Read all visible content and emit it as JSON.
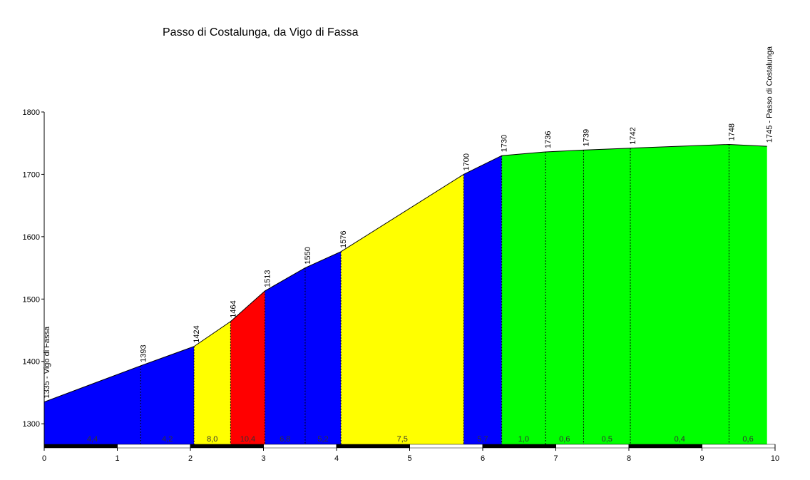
{
  "chart_data": {
    "type": "area",
    "title": "Passo di Costalunga, da Vigo di Fassa",
    "x": [
      0,
      1.32,
      2.05,
      2.55,
      3.02,
      3.57,
      4.06,
      5.74,
      6.26,
      6.86,
      7.38,
      8.02,
      9.37,
      9.89
    ],
    "values": [
      1335,
      1393,
      1424,
      1464,
      1513,
      1550,
      1576,
      1700,
      1730,
      1736,
      1739,
      1742,
      1748,
      1745
    ],
    "value_labels": [
      "1335 - Vigo di Fassa",
      "1393",
      "1424",
      "1464",
      "1513",
      "1550",
      "1576",
      "1700",
      "1730",
      "1736",
      "1739",
      "1742",
      "1748",
      "1745 - Passo di Costalunga"
    ],
    "segments": {
      "gradients": [
        4.4,
        4.2,
        8.0,
        10.4,
        6.8,
        5.2,
        7.5,
        5.7,
        1.0,
        0.6,
        0.5,
        0.4,
        0.6
      ],
      "gradient_labels": [
        "4,4",
        "4,2",
        "8,0",
        "10,4",
        "6,8",
        "5,2",
        "7,5",
        "5,7",
        "1,0",
        "0,6",
        "0,5",
        "0,4",
        "0,6"
      ],
      "colors": [
        "#0000ff",
        "#0000ff",
        "#ffff00",
        "#ff0000",
        "#0000ff",
        "#0000ff",
        "#ffff00",
        "#0000ff",
        "#00ff00",
        "#00ff00",
        "#00ff00",
        "#00ff00",
        "#00ff00"
      ]
    },
    "xlim": [
      0,
      10
    ],
    "xticks": [
      0,
      1,
      2,
      3,
      4,
      5,
      6,
      7,
      8,
      9,
      10
    ],
    "ylim": [
      1267,
      1800
    ],
    "yticks": [
      1300,
      1400,
      1500,
      1600,
      1700,
      1800
    ]
  }
}
